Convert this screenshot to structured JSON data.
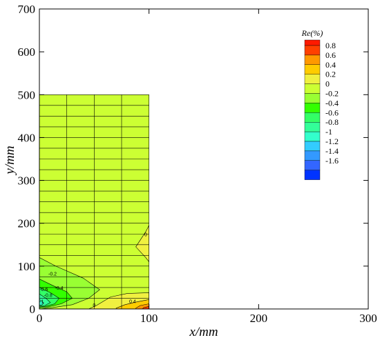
{
  "chart_data": {
    "type": "contour",
    "xlabel": "x/mm",
    "ylabel": "y/mm",
    "xlim": [
      0,
      300
    ],
    "ylim": [
      0,
      700
    ],
    "x_ticks": [
      0,
      100,
      200,
      300
    ],
    "y_ticks": [
      0,
      100,
      200,
      300,
      400,
      500,
      600,
      700
    ],
    "x_tick_labels": [
      "0",
      "100",
      "200",
      "300"
    ],
    "y_tick_labels": [
      "0",
      "100",
      "200",
      "300",
      "400",
      "500",
      "600",
      "700"
    ],
    "domain": {
      "x": [
        0,
        100
      ],
      "y": [
        0,
        500
      ]
    },
    "grid_x": [
      0,
      25,
      50,
      75,
      100
    ],
    "grid_y": [
      0,
      25,
      50,
      75,
      100,
      125,
      150,
      175,
      200,
      225,
      250,
      275,
      300,
      325,
      350,
      375,
      400,
      425,
      450,
      475,
      500
    ],
    "legend": {
      "title": "Re(%)",
      "position": "top-right",
      "levels": [
        {
          "label": "0.8",
          "color": "#ff4000"
        },
        {
          "label": "0.6",
          "color": "#ff9900"
        },
        {
          "label": "0.4",
          "color": "#ffcc00"
        },
        {
          "label": "0.2",
          "color": "#f0f040"
        },
        {
          "label": "0",
          "color": "#ccff33"
        },
        {
          "label": "-0.2",
          "color": "#99ff33"
        },
        {
          "label": "-0.4",
          "color": "#33ff00"
        },
        {
          "label": "-0.6",
          "color": "#33ff66"
        },
        {
          "label": "-0.8",
          "color": "#33ff99"
        },
        {
          "label": "-1",
          "color": "#33ffcc"
        },
        {
          "label": "-1.2",
          "color": "#33ccff"
        },
        {
          "label": "-1.4",
          "color": "#3399ff"
        },
        {
          "label": "-1.6",
          "color": "#3366ff"
        },
        {
          "label": "",
          "color": "#0033ff"
        }
      ],
      "top_color": "#ff1a00"
    },
    "background_color": "#ccff33",
    "regions": [
      {
        "value": -0.2,
        "color": "#99ff33",
        "points": [
          [
            0,
            120
          ],
          [
            15,
            100
          ],
          [
            40,
            72
          ],
          [
            55,
            45
          ],
          [
            45,
            25
          ],
          [
            30,
            10
          ],
          [
            12,
            3
          ],
          [
            0,
            0
          ]
        ]
      },
      {
        "value": -0.4,
        "color": "#33ff00",
        "points": [
          [
            0,
            70
          ],
          [
            12,
            55
          ],
          [
            25,
            40
          ],
          [
            30,
            25
          ],
          [
            20,
            12
          ],
          [
            8,
            5
          ],
          [
            0,
            3
          ]
        ]
      },
      {
        "value": -0.6,
        "color": "#33ff66",
        "points": [
          [
            0,
            50
          ],
          [
            10,
            38
          ],
          [
            18,
            25
          ],
          [
            14,
            12
          ],
          [
            5,
            6
          ],
          [
            0,
            5
          ]
        ]
      },
      {
        "value": -0.8,
        "color": "#33ff99",
        "points": [
          [
            0,
            35
          ],
          [
            6,
            25
          ],
          [
            10,
            15
          ],
          [
            5,
            8
          ],
          [
            0,
            8
          ]
        ]
      },
      {
        "value": -1,
        "color": "#33ffcc",
        "points": [
          [
            0,
            22
          ],
          [
            4,
            14
          ],
          [
            2,
            9
          ],
          [
            0,
            9
          ]
        ]
      },
      {
        "value": 0.2,
        "color": "#f0f040",
        "points": [
          [
            100,
            195
          ],
          [
            97,
            180
          ],
          [
            88,
            145
          ],
          [
            97,
            120
          ],
          [
            100,
            110
          ]
        ]
      },
      {
        "value": 0.2,
        "color": "#f0f040",
        "points": [
          [
            100,
            38
          ],
          [
            80,
            36
          ],
          [
            65,
            28
          ],
          [
            52,
            8
          ],
          [
            45,
            0
          ],
          [
            100,
            0
          ]
        ]
      },
      {
        "value": 0.4,
        "color": "#ffcc00",
        "points": [
          [
            100,
            22
          ],
          [
            88,
            16
          ],
          [
            78,
            10
          ],
          [
            70,
            2
          ],
          [
            70,
            0
          ],
          [
            100,
            0
          ]
        ]
      },
      {
        "value": 0.6,
        "color": "#ff9900",
        "points": [
          [
            100,
            12
          ],
          [
            92,
            8
          ],
          [
            88,
            2
          ],
          [
            88,
            0
          ],
          [
            100,
            0
          ]
        ]
      },
      {
        "value": 0.8,
        "color": "#ff4000",
        "points": [
          [
            100,
            6
          ],
          [
            95,
            3
          ],
          [
            94,
            0
          ],
          [
            100,
            0
          ]
        ]
      }
    ],
    "contour_labels": [
      {
        "text": "0",
        "x": 97,
        "y": 170
      },
      {
        "text": "-0.2",
        "x": 12,
        "y": 78
      },
      {
        "text": "-0.4",
        "x": 18,
        "y": 45
      },
      {
        "text": "-0.6",
        "x": 4,
        "y": 42
      },
      {
        "text": "-0.8",
        "x": 8,
        "y": 28
      },
      {
        "text": "-1",
        "x": 2,
        "y": 14
      },
      {
        "text": "0",
        "x": 50,
        "y": 5
      },
      {
        "text": "0.4",
        "x": 85,
        "y": 14
      }
    ]
  }
}
